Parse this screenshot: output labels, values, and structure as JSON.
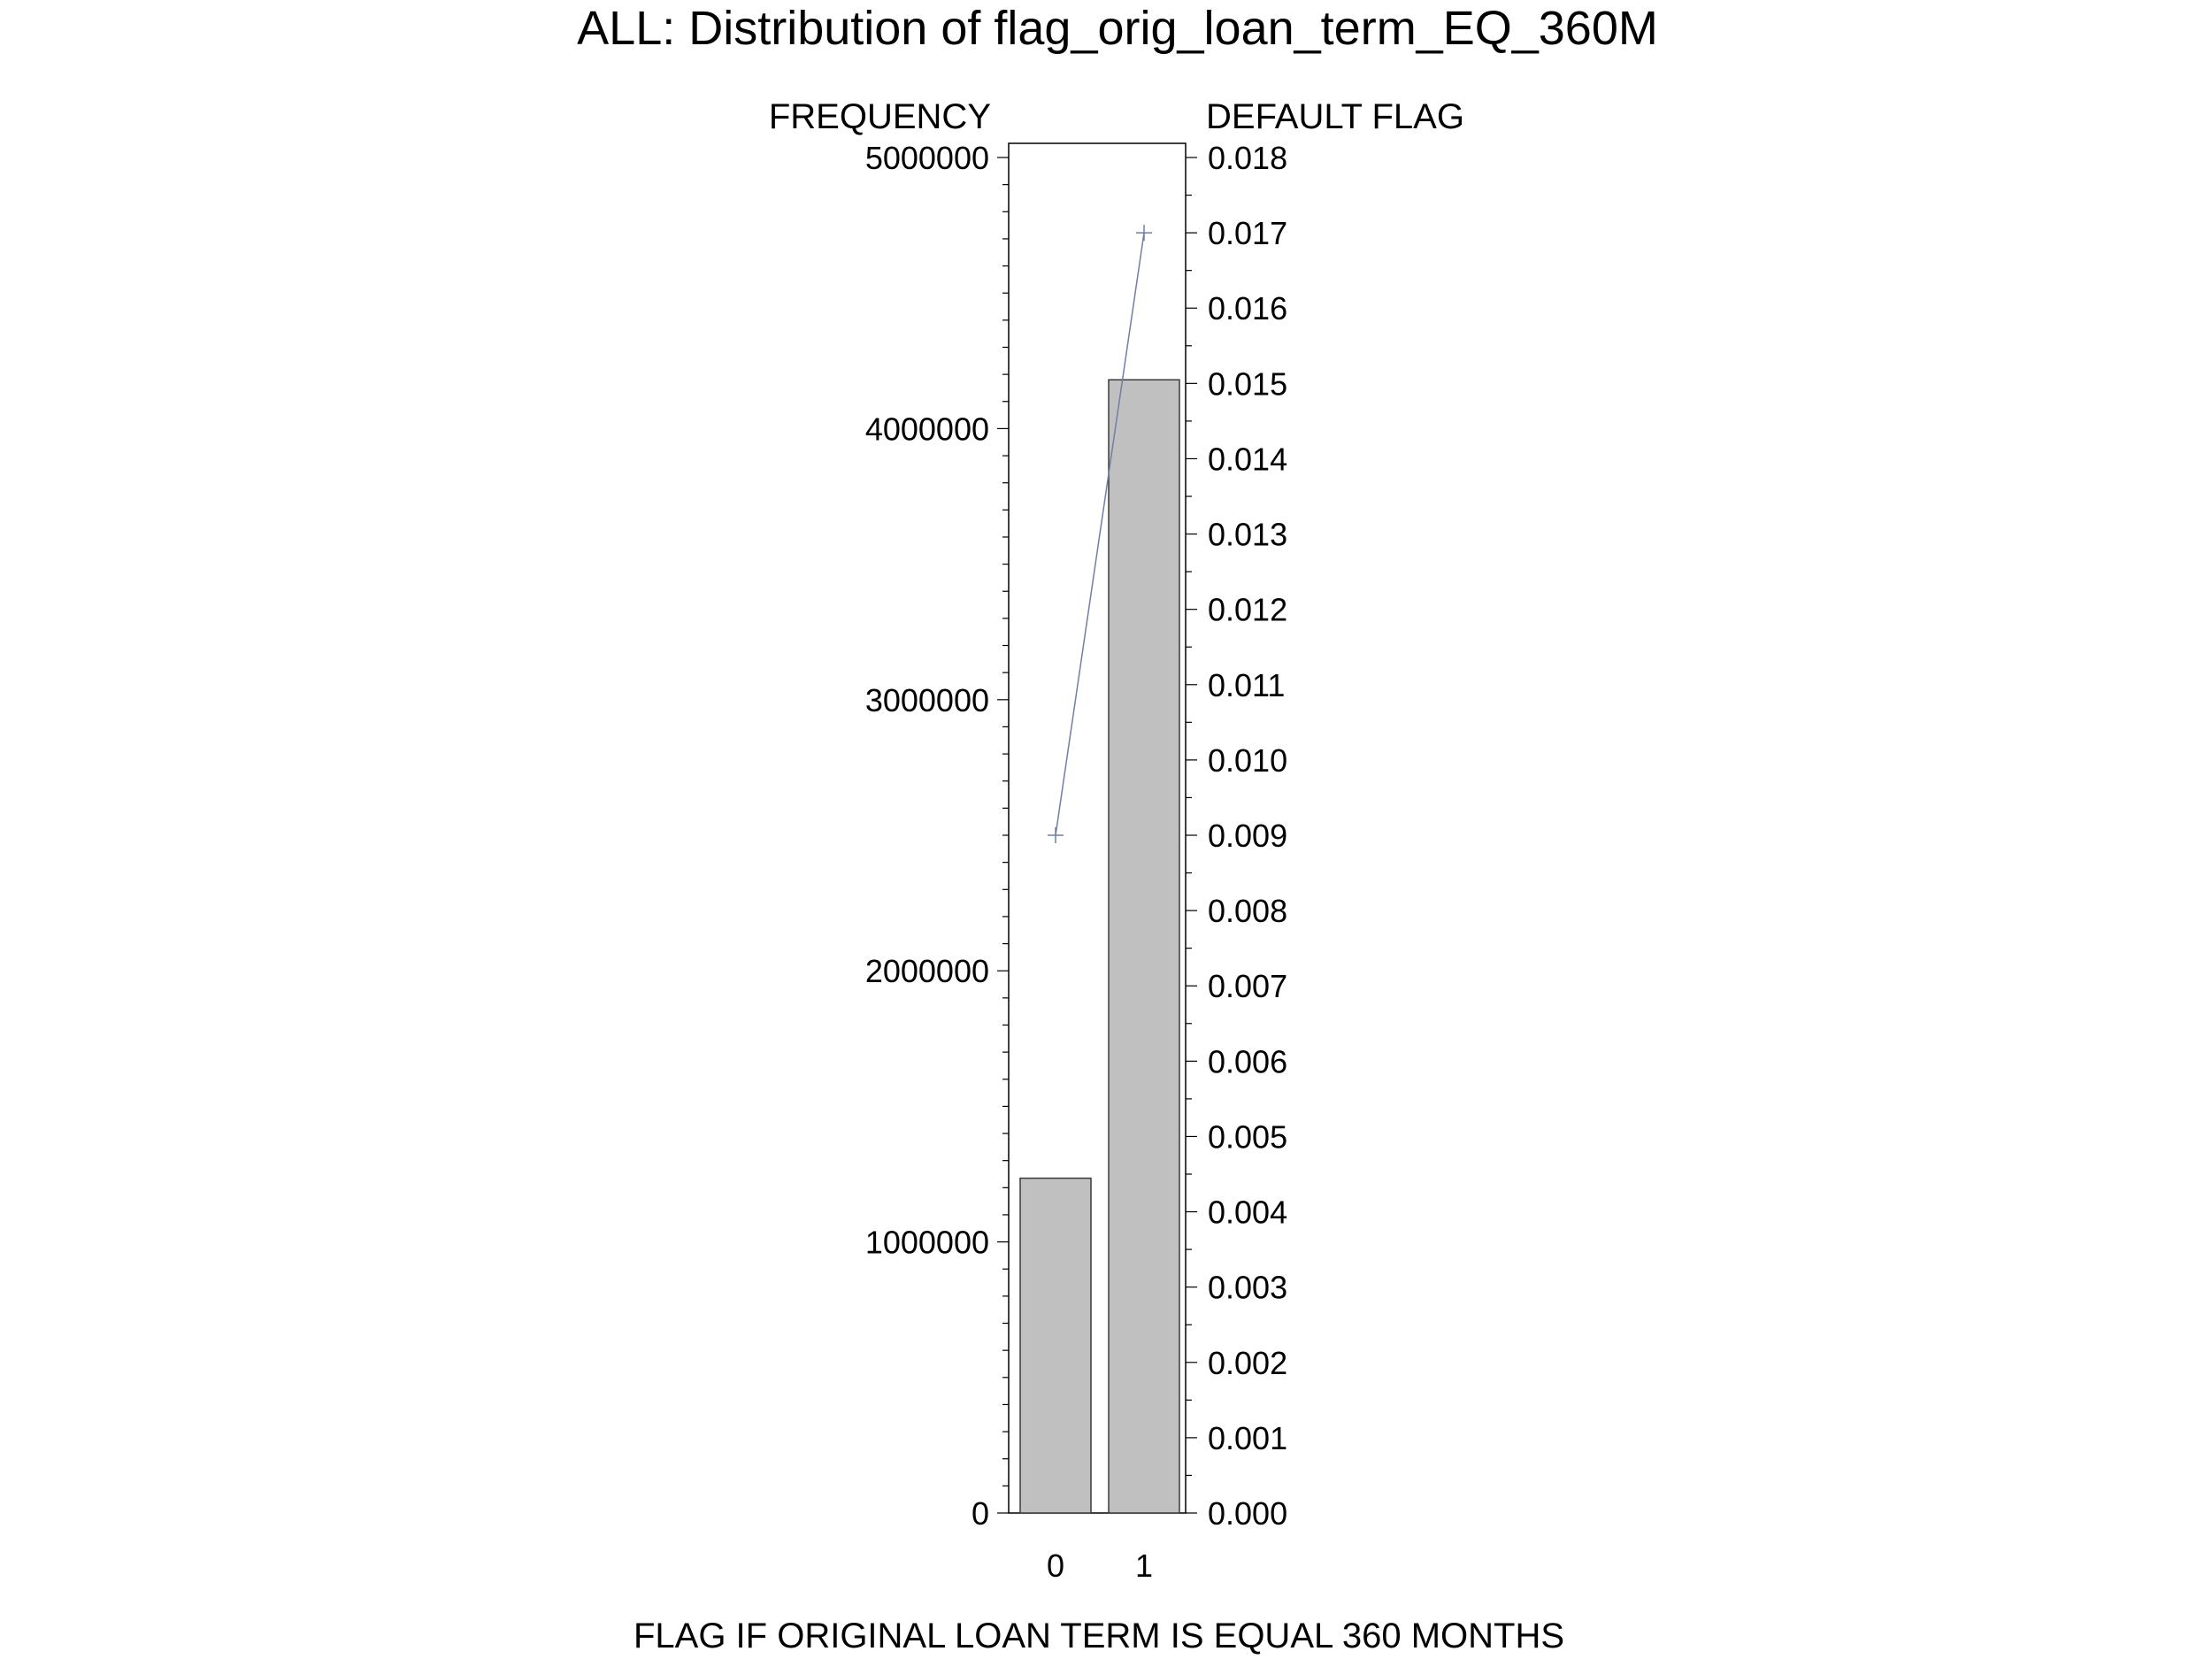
{
  "chart_data": {
    "type": "bar",
    "title": "ALL: Distribution of flag_orig_loan_term_EQ_360M",
    "xlabel": "FLAG IF ORIGINAL LOAN TERM IS EQUAL 360 MONTHS",
    "ylabel": "FREQUENCY",
    "y2label": "DEFAULT FLAG",
    "categories": [
      "0",
      "1"
    ],
    "series": [
      {
        "kind": "bar",
        "axis": "left",
        "values": [
          1235000,
          4180000
        ]
      },
      {
        "kind": "line",
        "axis": "right",
        "marker": "plus",
        "values": [
          0.009,
          0.017
        ]
      }
    ],
    "ylim": [
      0,
      5000000
    ],
    "y2lim": [
      0,
      0.018
    ],
    "yticks": [
      "0",
      "1000000",
      "2000000",
      "3000000",
      "4000000",
      "5000000"
    ],
    "y2ticks": [
      "0.000",
      "0.001",
      "0.002",
      "0.003",
      "0.004",
      "0.005",
      "0.006",
      "0.007",
      "0.008",
      "0.009",
      "0.010",
      "0.011",
      "0.012",
      "0.013",
      "0.014",
      "0.015",
      "0.016",
      "0.017",
      "0.018"
    ],
    "grid": false,
    "colors": {
      "bar_fill": "#c0c0c0",
      "bar_stroke": "#3a3a3a",
      "line": "#6f7fa8",
      "axis": "#000000"
    }
  }
}
